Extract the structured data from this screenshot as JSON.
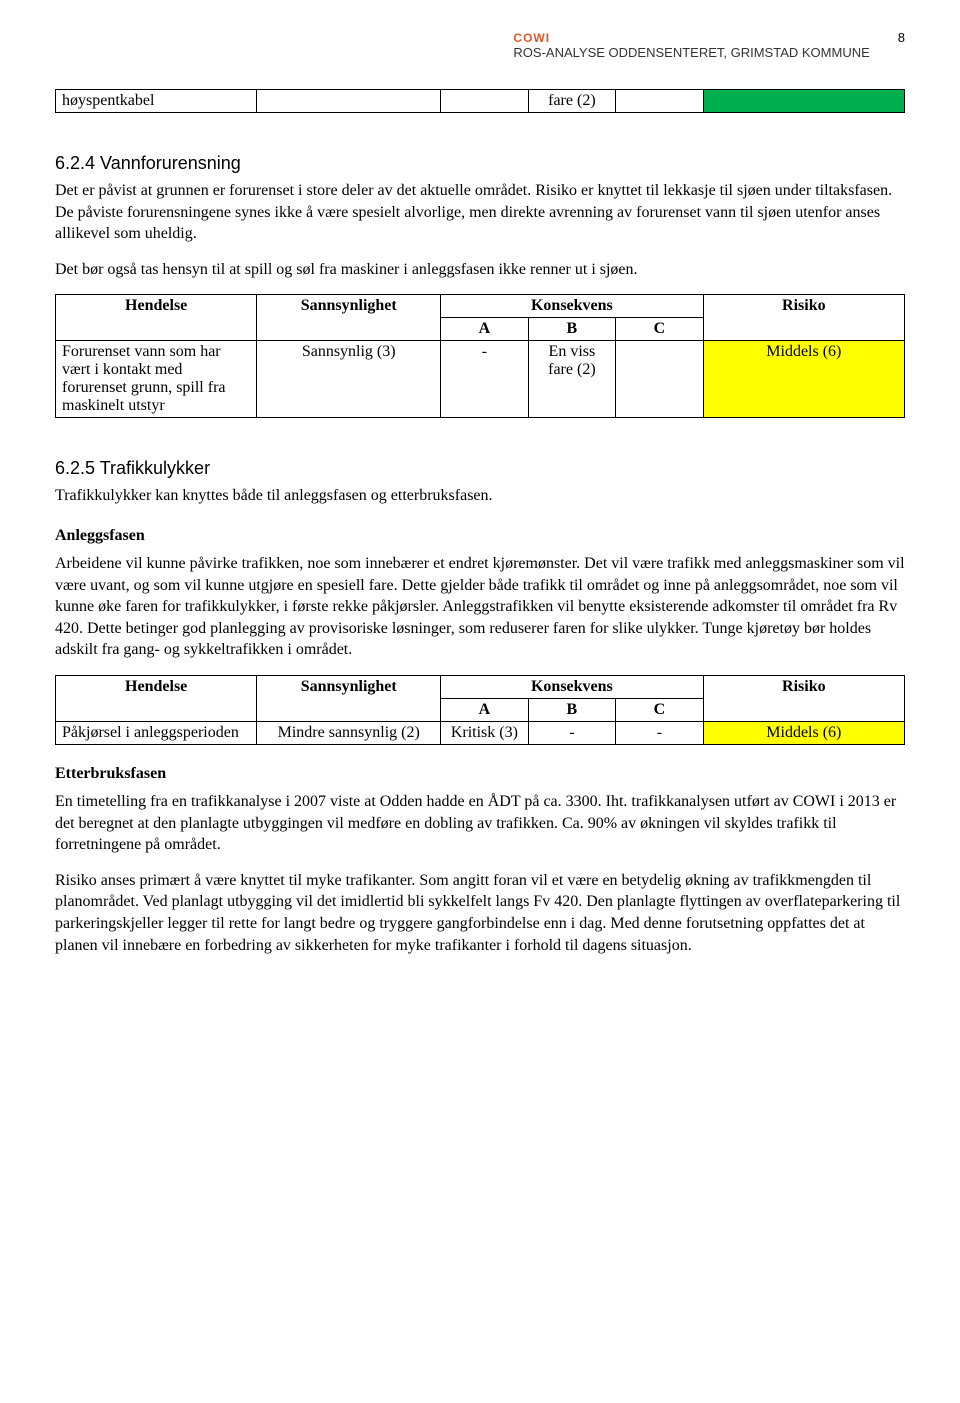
{
  "header": {
    "brand": "COWI",
    "title": "ROS-ANALYSE ODDENSENTERET, GRIMSTAD KOMMUNE",
    "page": "8"
  },
  "table0": {
    "row": {
      "hendelse": "høyspentkabel",
      "sanns": "",
      "a": "",
      "b": "fare (2)",
      "c": "",
      "risiko": "",
      "risk_color": "#00b050"
    }
  },
  "sec624": {
    "heading": "6.2.4  Vannforurensning",
    "p1": "Det er påvist at grunnen er forurenset i store deler av det aktuelle området. Risiko er knyttet til lekkasje til sjøen under tiltaksfasen. De påviste forurensningene synes ikke å være spesielt alvorlige, men direkte avrenning av forurenset vann til sjøen utenfor anses allikevel som uheldig.",
    "p2": "Det bør også tas hensyn til at spill og søl fra maskiner i anleggsfasen ikke renner ut i sjøen."
  },
  "table1": {
    "headers": {
      "hendelse": "Hendelse",
      "sanns": "Sannsynlighet",
      "kons": "Konsekvens",
      "a": "A",
      "b": "B",
      "c": "C",
      "risiko": "Risiko"
    },
    "row": {
      "hendelse": "Forurenset vann som har vært i kontakt med forurenset grunn, spill fra maskinelt utstyr",
      "sanns": "Sannsynlig (3)",
      "a": "-",
      "b": "En viss fare (2)",
      "c": "",
      "risiko": "Middels (6)",
      "risk_color": "#ffff00"
    }
  },
  "sec625": {
    "heading": "6.2.5  Trafikkulykker",
    "p1": "Trafikkulykker kan knyttes både til anleggsfasen og etterbruksfasen.",
    "h_anlegg": "Anleggsfasen",
    "p2": "Arbeidene vil kunne påvirke trafikken, noe som innebærer et endret kjøremønster. Det vil være trafikk med anleggsmaskiner som vil være uvant, og som vil kunne utgjøre en spesiell fare. Dette gjelder både trafikk til området og inne på anleggsområdet, noe som vil kunne øke faren for trafikkulykker, i første rekke påkjørsler. Anleggstrafikken vil benytte eksisterende adkomster til området fra Rv 420. Dette betinger god planlegging av provisoriske løsninger, som reduserer faren for slike ulykker. Tunge kjøretøy bør holdes adskilt fra gang- og sykkeltrafikken i området."
  },
  "table2": {
    "headers": {
      "hendelse": "Hendelse",
      "sanns": "Sannsynlighet",
      "kons": "Konsekvens",
      "a": "A",
      "b": "B",
      "c": "C",
      "risiko": "Risiko"
    },
    "row": {
      "hendelse": "Påkjørsel i anleggsperioden",
      "sanns": "Mindre sannsynlig (2)",
      "a": "Kritisk (3)",
      "b": "-",
      "c": "-",
      "risiko": "Middels (6)",
      "risk_color": "#ffff00"
    }
  },
  "sec_etter": {
    "h": "Etterbruksfasen",
    "p1": "En timetelling fra en trafikkanalyse i 2007 viste at Odden hadde en ÅDT på ca. 3300. Iht. trafikkanalysen utført av COWI i 2013 er det beregnet at den planlagte utbyggingen vil medføre en dobling av trafikken. Ca. 90% av økningen vil skyldes trafikk til forretningene på området.",
    "p2": "Risiko anses primært å være knyttet til myke trafikanter. Som angitt foran vil et være en betydelig økning av trafikkmengden til planområdet. Ved planlagt utbygging vil det imidlertid bli sykkelfelt langs Fv 420. Den planlagte flyttingen av overflateparkering til parkeringskjeller legger til rette for langt bedre og tryggere gangforbindelse enn i dag. Med denne forutsetning oppfattes det at planen vil innebære en forbedring av sikkerheten for myke trafikanter i forhold til dagens situasjon."
  }
}
